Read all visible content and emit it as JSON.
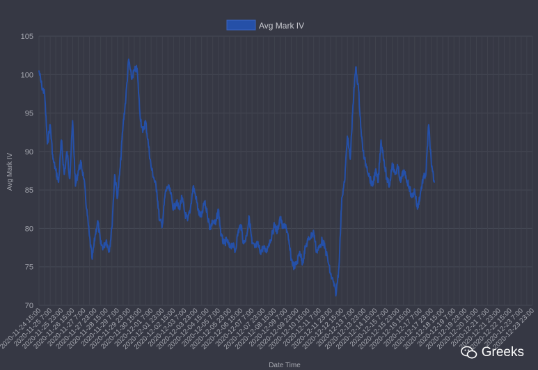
{
  "chart_data": {
    "type": "line",
    "title": "",
    "xlabel": "Date Time",
    "ylabel": "Avg Mark IV",
    "ylim": [
      70,
      105
    ],
    "yticks": [
      70,
      75,
      80,
      85,
      90,
      95,
      100,
      105
    ],
    "grid": true,
    "legend": "top-center",
    "x_ticks": [
      "2020-11-24 15:00",
      "2020-11-25 7:00",
      "2020-11-25 23:00",
      "2020-11-26 15:00",
      "2020-11-27 7:00",
      "2020-11-27 23:00",
      "2020-11-28 15:00",
      "2020-11-29 7:00",
      "2020-11-29 23:00",
      "2020-11-30 15:00",
      "2020-12-01 7:00",
      "2020-12-01 23:00",
      "2020-12-02 15:00",
      "2020-12-03 7:00",
      "2020-12-03 23:00",
      "2020-12-04 15:00",
      "2020-12-05 7:00",
      "2020-12-05 23:00",
      "2020-12-06 15:00",
      "2020-12-07 7:00",
      "2020-12-07 23:00",
      "2020-12-08 15:00",
      "2020-12-09 7:00",
      "2020-12-09 23:00",
      "2020-12-10 15:00",
      "2020-12-11 7:00",
      "2020-12-11 23:00",
      "2020-12-12 15:00",
      "2020-12-13 7:00",
      "2020-12-13 23:00",
      "2020-12-14 15:00",
      "2020-12-15 7:00",
      "2020-12-15 23:00",
      "2020-12-16 15:00",
      "2020-12-17 7:00",
      "2020-12-17 23:00",
      "2020-12-18 15:00",
      "2020-12-19 7:00",
      "2020-12-19 23:00",
      "2020-12-20 15:00",
      "2020-12-21 7:00",
      "2020-12-21 23:00",
      "2020-12-22 15:00",
      "2020-12-23 7:00",
      "2020-12-23 23:00"
    ],
    "series": [
      {
        "name": "Avg Mark IV",
        "color": "#2550a8",
        "points": [
          [
            "2020-11-24 15:00",
            100.5
          ],
          [
            "2020-11-24 19:00",
            98.5
          ],
          [
            "2020-11-24 23:00",
            97.5
          ],
          [
            "2020-11-25 3:00",
            91.0
          ],
          [
            "2020-11-25 7:00",
            93.5
          ],
          [
            "2020-11-25 11:00",
            89.0
          ],
          [
            "2020-11-25 15:00",
            87.5
          ],
          [
            "2020-11-25 19:00",
            86.0
          ],
          [
            "2020-11-25 23:00",
            91.5
          ],
          [
            "2020-11-26 3:00",
            87.0
          ],
          [
            "2020-11-26 7:00",
            90.0
          ],
          [
            "2020-11-26 11:00",
            86.5
          ],
          [
            "2020-11-26 15:00",
            94.0
          ],
          [
            "2020-11-26 19:00",
            85.5
          ],
          [
            "2020-11-26 23:00",
            87.5
          ],
          [
            "2020-11-27 3:00",
            88.5
          ],
          [
            "2020-11-27 7:00",
            86.5
          ],
          [
            "2020-11-27 11:00",
            82.5
          ],
          [
            "2020-11-27 15:00",
            79.0
          ],
          [
            "2020-11-27 19:00",
            76.0
          ],
          [
            "2020-11-27 23:00",
            79.0
          ],
          [
            "2020-11-28 3:00",
            81.0
          ],
          [
            "2020-11-28 7:00",
            78.0
          ],
          [
            "2020-11-28 11:00",
            77.5
          ],
          [
            "2020-11-28 15:00",
            78.5
          ],
          [
            "2020-11-28 19:00",
            77.0
          ],
          [
            "2020-11-28 23:00",
            80.0
          ],
          [
            "2020-11-29 3:00",
            87.0
          ],
          [
            "2020-11-29 7:00",
            84.0
          ],
          [
            "2020-11-29 11:00",
            88.0
          ],
          [
            "2020-11-29 15:00",
            93.5
          ],
          [
            "2020-11-29 19:00",
            97.0
          ],
          [
            "2020-11-29 23:00",
            102.0
          ],
          [
            "2020-11-30 3:00",
            99.5
          ],
          [
            "2020-11-30 7:00",
            100.5
          ],
          [
            "2020-11-30 11:00",
            100.8
          ],
          [
            "2020-11-30 15:00",
            95.0
          ],
          [
            "2020-11-30 19:00",
            92.5
          ],
          [
            "2020-11-30 23:00",
            94.0
          ],
          [
            "2020-12-01 3:00",
            91.0
          ],
          [
            "2020-12-01 7:00",
            88.0
          ],
          [
            "2020-12-01 11:00",
            86.5
          ],
          [
            "2020-12-01 15:00",
            85.0
          ],
          [
            "2020-12-01 19:00",
            81.0
          ],
          [
            "2020-12-01 23:00",
            80.5
          ],
          [
            "2020-12-02 3:00",
            84.5
          ],
          [
            "2020-12-02 7:00",
            85.5
          ],
          [
            "2020-12-02 11:00",
            84.5
          ],
          [
            "2020-12-02 15:00",
            82.5
          ],
          [
            "2020-12-02 19:00",
            83.5
          ],
          [
            "2020-12-02 23:00",
            82.5
          ],
          [
            "2020-12-03 3:00",
            84.0
          ],
          [
            "2020-12-03 7:00",
            82.0
          ],
          [
            "2020-12-03 11:00",
            81.0
          ],
          [
            "2020-12-03 15:00",
            82.5
          ],
          [
            "2020-12-03 19:00",
            85.5
          ],
          [
            "2020-12-03 23:00",
            84.0
          ],
          [
            "2020-12-04 3:00",
            82.0
          ],
          [
            "2020-12-04 7:00",
            81.5
          ],
          [
            "2020-12-04 11:00",
            83.5
          ],
          [
            "2020-12-04 15:00",
            82.0
          ],
          [
            "2020-12-04 19:00",
            80.0
          ],
          [
            "2020-12-04 23:00",
            81.0
          ],
          [
            "2020-12-05 3:00",
            80.5
          ],
          [
            "2020-12-05 7:00",
            82.5
          ],
          [
            "2020-12-05 11:00",
            79.0
          ],
          [
            "2020-12-05 15:00",
            78.0
          ],
          [
            "2020-12-05 19:00",
            78.5
          ],
          [
            "2020-12-05 23:00",
            77.5
          ],
          [
            "2020-12-06 3:00",
            78.0
          ],
          [
            "2020-12-06 7:00",
            77.0
          ],
          [
            "2020-12-06 11:00",
            79.5
          ],
          [
            "2020-12-06 15:00",
            80.5
          ],
          [
            "2020-12-06 19:00",
            78.0
          ],
          [
            "2020-12-06 23:00",
            79.0
          ],
          [
            "2020-12-07 3:00",
            81.5
          ],
          [
            "2020-12-07 7:00",
            78.0
          ],
          [
            "2020-12-07 11:00",
            77.5
          ],
          [
            "2020-12-07 15:00",
            78.0
          ],
          [
            "2020-12-07 19:00",
            77.0
          ],
          [
            "2020-12-07 23:00",
            77.5
          ],
          [
            "2020-12-08 3:00",
            77.0
          ],
          [
            "2020-12-08 7:00",
            78.0
          ],
          [
            "2020-12-08 11:00",
            79.0
          ],
          [
            "2020-12-08 15:00",
            80.5
          ],
          [
            "2020-12-08 19:00",
            79.5
          ],
          [
            "2020-12-08 23:00",
            81.5
          ],
          [
            "2020-12-09 3:00",
            80.0
          ],
          [
            "2020-12-09 7:00",
            80.5
          ],
          [
            "2020-12-09 11:00",
            78.5
          ],
          [
            "2020-12-09 15:00",
            76.0
          ],
          [
            "2020-12-09 19:00",
            75.0
          ],
          [
            "2020-12-09 23:00",
            75.5
          ],
          [
            "2020-12-10 3:00",
            77.0
          ],
          [
            "2020-12-10 7:00",
            75.5
          ],
          [
            "2020-12-10 11:00",
            77.5
          ],
          [
            "2020-12-10 15:00",
            78.5
          ],
          [
            "2020-12-10 19:00",
            79.0
          ],
          [
            "2020-12-10 23:00",
            79.5
          ],
          [
            "2020-12-11 3:00",
            77.0
          ],
          [
            "2020-12-11 7:00",
            77.5
          ],
          [
            "2020-12-11 11:00",
            78.5
          ],
          [
            "2020-12-11 15:00",
            77.5
          ],
          [
            "2020-12-11 19:00",
            76.0
          ],
          [
            "2020-12-11 23:00",
            74.0
          ],
          [
            "2020-12-12 3:00",
            73.0
          ],
          [
            "2020-12-12 7:00",
            71.5
          ],
          [
            "2020-12-12 11:00",
            75.0
          ],
          [
            "2020-12-12 15:00",
            84.0
          ],
          [
            "2020-12-12 19:00",
            86.0
          ],
          [
            "2020-12-12 23:00",
            92.0
          ],
          [
            "2020-12-13 3:00",
            89.0
          ],
          [
            "2020-12-13 7:00",
            96.0
          ],
          [
            "2020-12-13 11:00",
            101.0
          ],
          [
            "2020-12-13 15:00",
            98.0
          ],
          [
            "2020-12-13 19:00",
            92.0
          ],
          [
            "2020-12-13 23:00",
            89.0
          ],
          [
            "2020-12-14 3:00",
            88.0
          ],
          [
            "2020-12-14 7:00",
            86.5
          ],
          [
            "2020-12-14 11:00",
            85.5
          ],
          [
            "2020-12-14 15:00",
            87.5
          ],
          [
            "2020-12-14 19:00",
            86.0
          ],
          [
            "2020-12-14 23:00",
            91.5
          ],
          [
            "2020-12-15 3:00",
            89.0
          ],
          [
            "2020-12-15 7:00",
            86.5
          ],
          [
            "2020-12-15 11:00",
            85.5
          ],
          [
            "2020-12-15 15:00",
            88.5
          ],
          [
            "2020-12-15 19:00",
            87.0
          ],
          [
            "2020-12-15 23:00",
            88.0
          ],
          [
            "2020-12-16 3:00",
            86.0
          ],
          [
            "2020-12-16 7:00",
            87.5
          ],
          [
            "2020-12-16 11:00",
            86.5
          ],
          [
            "2020-12-16 15:00",
            85.5
          ],
          [
            "2020-12-16 19:00",
            84.0
          ],
          [
            "2020-12-16 23:00",
            85.0
          ],
          [
            "2020-12-17 3:00",
            82.5
          ],
          [
            "2020-12-17 7:00",
            84.5
          ],
          [
            "2020-12-17 11:00",
            86.5
          ],
          [
            "2020-12-17 15:00",
            87.0
          ],
          [
            "2020-12-17 19:00",
            93.5
          ],
          [
            "2020-12-17 23:00",
            88.0
          ],
          [
            "2020-12-18 3:00",
            86.0
          ]
        ]
      }
    ]
  },
  "watermark": {
    "text": "Greeks",
    "icon": "wechat-icon"
  }
}
